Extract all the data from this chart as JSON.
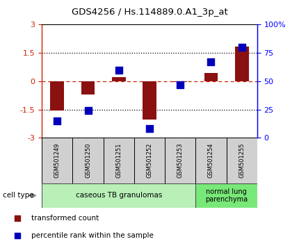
{
  "title": "GDS4256 / Hs.114889.0.A1_3p_at",
  "samples": [
    "GSM501249",
    "GSM501250",
    "GSM501251",
    "GSM501252",
    "GSM501253",
    "GSM501254",
    "GSM501255"
  ],
  "transformed_counts": [
    -1.55,
    -0.7,
    0.2,
    -2.05,
    -0.05,
    0.45,
    1.85
  ],
  "percentile_ranks": [
    15,
    24,
    60,
    8,
    47,
    67,
    80
  ],
  "ylim_left": [
    -3,
    3
  ],
  "ylim_right": [
    0,
    100
  ],
  "yticks_left": [
    -3,
    -1.5,
    0,
    1.5,
    3
  ],
  "ytick_labels_left": [
    "-3",
    "-1.5",
    "0",
    "1.5",
    "3"
  ],
  "yticks_right": [
    0,
    25,
    50,
    75,
    100
  ],
  "ytick_labels_right": [
    "0",
    "25",
    "50",
    "75",
    "100%"
  ],
  "bar_color": "#8B1010",
  "dot_color": "#0000BB",
  "bar_width": 0.45,
  "dot_size": 45,
  "group1_label": "caseous TB granulomas",
  "group2_label": "normal lung\nparenchyma",
  "group1_color": "#b8f0b8",
  "group2_color": "#78e878",
  "cell_type_label": "cell type",
  "legend_bar_label": "transformed count",
  "legend_dot_label": "percentile rank within the sample",
  "sample_box_color": "#d0d0d0",
  "plot_bg_color": "#ffffff"
}
